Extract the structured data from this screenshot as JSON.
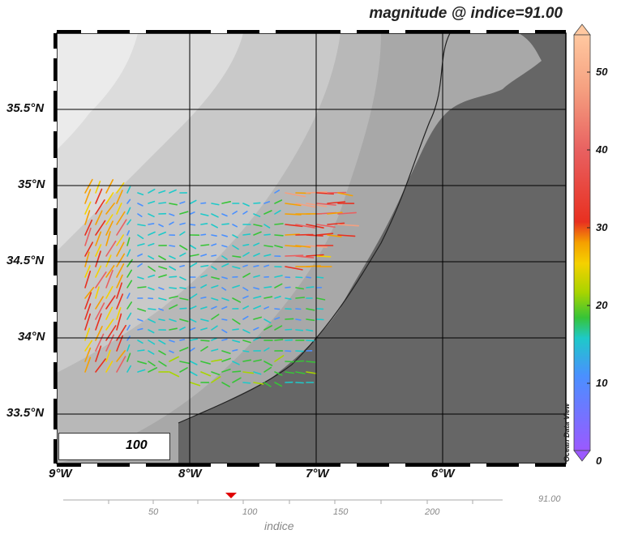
{
  "title": "magnitude @ indice=91.00",
  "map": {
    "lat_labels": [
      "35.5°N",
      "35°N",
      "34.5°N",
      "34°N",
      "33.5°N"
    ],
    "lon_labels": [
      "9°W",
      "8°W",
      "7°W",
      "6°W"
    ],
    "reference_vector": {
      "value": "100"
    },
    "watermark": "Ocean Data View",
    "land_color": "#666666",
    "sea_colors": [
      "#eeeeee",
      "#d6d6d6",
      "#bdbdbd",
      "#a3a3a3"
    ]
  },
  "colorbar": {
    "ticks": [
      "50",
      "40",
      "30",
      "20",
      "10",
      "0"
    ],
    "range": [
      0,
      55
    ],
    "colors": [
      "#9b59ff",
      "#4a90ff",
      "#1ec9c9",
      "#37c437",
      "#a8d400",
      "#f5d100",
      "#f5a000",
      "#e83020",
      "#e86060",
      "#f5a080",
      "#ffc8a0"
    ]
  },
  "slider": {
    "ticks": [
      "50",
      "100",
      "150",
      "200"
    ],
    "current": "91.00",
    "axis_label": "indice",
    "value": 91,
    "range": [
      0,
      235
    ]
  }
}
